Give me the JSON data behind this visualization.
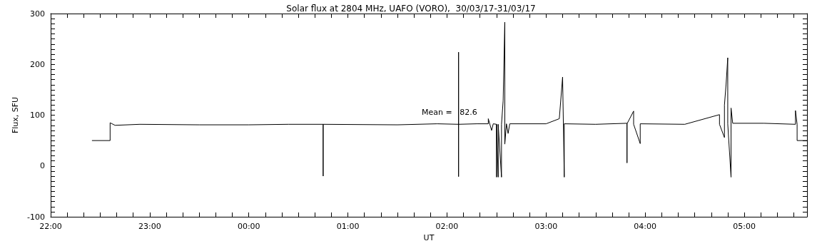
{
  "chart_data": {
    "type": "line",
    "title": "Solar flux at 2804 MHz, UAFO (VORO),  30/03/17-31/03/17",
    "xlabel": "UT",
    "ylabel": "Flux, SFU",
    "annotations": [
      "Mean =   82.6"
    ],
    "xlim": [
      "--03-30T22:00",
      "--03-31T05:38"
    ],
    "ylim": [
      -100,
      300
    ],
    "xticks": [
      {
        "value": "--03-30T22:00",
        "label": "22:00"
      },
      {
        "value": "--03-30T22:10",
        "label": null
      },
      {
        "value": "--03-30T22:20",
        "label": null
      },
      {
        "value": "--03-30T22:30",
        "label": null
      },
      {
        "value": "--03-30T22:40",
        "label": null
      },
      {
        "value": "--03-30T22:50",
        "label": null
      },
      {
        "value": "--03-30T23:00",
        "label": "23:00"
      },
      {
        "value": "--03-30T23:10",
        "label": null
      },
      {
        "value": "--03-30T23:20",
        "label": null
      },
      {
        "value": "--03-30T23:30",
        "label": null
      },
      {
        "value": "--03-30T23:40",
        "label": null
      },
      {
        "value": "--03-30T23:50",
        "label": null
      },
      {
        "value": "--03-31T00:00",
        "label": "00:00"
      },
      {
        "value": "--03-31T00:10",
        "label": null
      },
      {
        "value": "--03-31T00:20",
        "label": null
      },
      {
        "value": "--03-31T00:30",
        "label": null
      },
      {
        "value": "--03-31T00:40",
        "label": null
      },
      {
        "value": "--03-31T00:50",
        "label": null
      },
      {
        "value": "--03-31T01:00",
        "label": "01:00"
      },
      {
        "value": "--03-31T01:10",
        "label": null
      },
      {
        "value": "--03-31T01:20",
        "label": null
      },
      {
        "value": "--03-31T01:30",
        "label": null
      },
      {
        "value": "--03-31T01:40",
        "label": null
      },
      {
        "value": "--03-31T01:50",
        "label": null
      },
      {
        "value": "--03-31T02:00",
        "label": "02:00"
      },
      {
        "value": "--03-31T02:10",
        "label": null
      },
      {
        "value": "--03-31T02:20",
        "label": null
      },
      {
        "value": "--03-31T02:30",
        "label": null
      },
      {
        "value": "--03-31T02:40",
        "label": null
      },
      {
        "value": "--03-31T02:50",
        "label": null
      },
      {
        "value": "--03-31T03:00",
        "label": "03:00"
      },
      {
        "value": "--03-31T03:10",
        "label": null
      },
      {
        "value": "--03-31T03:20",
        "label": null
      },
      {
        "value": "--03-31T03:30",
        "label": null
      },
      {
        "value": "--03-31T03:40",
        "label": null
      },
      {
        "value": "--03-31T03:50",
        "label": null
      },
      {
        "value": "--03-31T04:00",
        "label": "04:00"
      },
      {
        "value": "--03-31T04:10",
        "label": null
      },
      {
        "value": "--03-31T04:20",
        "label": null
      },
      {
        "value": "--03-31T04:30",
        "label": null
      },
      {
        "value": "--03-31T04:40",
        "label": null
      },
      {
        "value": "--03-31T04:50",
        "label": null
      },
      {
        "value": "--03-31T05:00",
        "label": "05:00"
      },
      {
        "value": "--03-31T05:10",
        "label": null
      },
      {
        "value": "--03-31T05:20",
        "label": null
      },
      {
        "value": "--03-31T05:30",
        "label": null
      }
    ],
    "yticks": [
      -100,
      {
        "value": -90,
        "label": null
      },
      {
        "value": -80,
        "label": null
      },
      {
        "value": -70,
        "label": null
      },
      {
        "value": -60,
        "label": null
      },
      {
        "value": -50,
        "label": null
      },
      {
        "value": -40,
        "label": null
      },
      {
        "value": -30,
        "label": null
      },
      {
        "value": -20,
        "label": null
      },
      {
        "value": -10,
        "label": null
      },
      0,
      {
        "value": 10,
        "label": null
      },
      {
        "value": 20,
        "label": null
      },
      {
        "value": 30,
        "label": null
      },
      {
        "value": 40,
        "label": null
      },
      {
        "value": 50,
        "label": null
      },
      {
        "value": 60,
        "label": null
      },
      {
        "value": 70,
        "label": null
      },
      {
        "value": 80,
        "label": null
      },
      {
        "value": 90,
        "label": null
      },
      100,
      {
        "value": 110,
        "label": null
      },
      {
        "value": 120,
        "label": null
      },
      {
        "value": 130,
        "label": null
      },
      {
        "value": 140,
        "label": null
      },
      {
        "value": 150,
        "label": null
      },
      {
        "value": 160,
        "label": null
      },
      {
        "value": 170,
        "label": null
      },
      {
        "value": 180,
        "label": null
      },
      {
        "value": 190,
        "label": null
      },
      200,
      {
        "value": 210,
        "label": null
      },
      {
        "value": 220,
        "label": null
      },
      {
        "value": 230,
        "label": null
      },
      {
        "value": 240,
        "label": null
      },
      {
        "value": 250,
        "label": null
      },
      {
        "value": 260,
        "label": null
      },
      {
        "value": 270,
        "label": null
      },
      {
        "value": 280,
        "label": null
      },
      {
        "value": 290,
        "label": null
      },
      300
    ],
    "grid": false,
    "marker": "none",
    "line_style": "solid",
    "series": [
      {
        "color": "#000000",
        "x": [
          "--03-30T22:25",
          "--03-30T22:36",
          "--03-30T22:36",
          "--03-30T22:39",
          "--03-30T22:54",
          "--03-30T23:30",
          "--03-31T00:00",
          "--03-31T00:24",
          "--03-31T00:45",
          "--03-31T00:45",
          "--03-31T00:45",
          "--03-31T01:30",
          "--03-31T01:54",
          "--03-31T02:07",
          "--03-31T02:07",
          "--03-31T02:07",
          "--03-31T02:07",
          "--03-31T02:18",
          "--03-31T02:25",
          "--03-31T02:25",
          "--03-31T02:27",
          "--03-31T02:28",
          "--03-31T02:30",
          "--03-31T02:30",
          "--03-31T02:30",
          "--03-31T02:31",
          "--03-31T02:31",
          "--03-31T02:33",
          "--03-31T02:33",
          "--03-31T02:34",
          "--03-31T02:35",
          "--03-31T02:35",
          "--03-31T02:36",
          "--03-31T02:37",
          "--03-31T02:38",
          "--03-31T03:00",
          "--03-31T03:08",
          "--03-31T03:10",
          "--03-31T03:11",
          "--03-31T03:11",
          "--03-31T03:30",
          "--03-31T03:49",
          "--03-31T03:49",
          "--03-31T03:49",
          "--03-31T03:53",
          "--03-31T03:53",
          "--03-31T03:57",
          "--03-31T03:57",
          "--03-31T04:24",
          "--03-31T04:45",
          "--03-31T04:45",
          "--03-31T04:48",
          "--03-31T04:48",
          "--03-31T04:49",
          "--03-31T04:50",
          "--03-31T04:50",
          "--03-31T04:52",
          "--03-31T04:52",
          "--03-31T04:53",
          "--03-31T05:12",
          "--03-31T05:31",
          "--03-31T05:31",
          "--03-31T05:32",
          "--03-31T05:32",
          "--03-31T05:38"
        ],
        "values": [
          50,
          50,
          85,
          80,
          82,
          81,
          81,
          82,
          82,
          -20,
          82,
          81,
          83,
          82,
          224,
          -21,
          82,
          83,
          83,
          93,
          70,
          83,
          82,
          -22,
          82,
          -22,
          82,
          -22,
          82,
          128,
          283,
          43,
          83,
          64,
          83,
          83,
          93,
          175,
          -22,
          83,
          82,
          84,
          6,
          83,
          108,
          82,
          44,
          83,
          82,
          101,
          82,
          56,
          120,
          161,
          213,
          83,
          -22,
          114,
          84,
          84,
          82,
          109,
          82,
          50,
          50
        ]
      }
    ]
  }
}
